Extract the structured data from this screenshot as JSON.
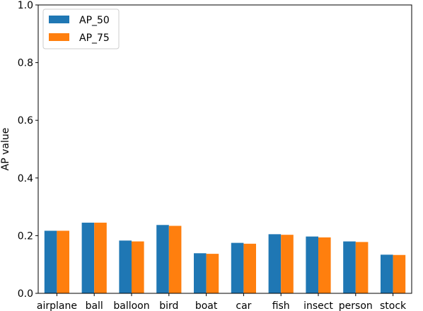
{
  "chart_data": {
    "type": "bar",
    "title": "",
    "xlabel": "",
    "ylabel": "AP value",
    "ylim": [
      0,
      1.0
    ],
    "yticks": [
      "0.0",
      "0.2",
      "0.4",
      "0.6",
      "0.8",
      "1.0"
    ],
    "categories": [
      "airplane",
      "ball",
      "balloon",
      "bird",
      "boat",
      "car",
      "fish",
      "insect",
      "person",
      "stock"
    ],
    "series": [
      {
        "name": "AP_50",
        "color": "#1f77b4",
        "values": [
          0.217,
          0.245,
          0.183,
          0.237,
          0.139,
          0.175,
          0.205,
          0.197,
          0.18,
          0.134
        ]
      },
      {
        "name": "AP_75",
        "color": "#ff7f0e",
        "values": [
          0.217,
          0.245,
          0.18,
          0.234,
          0.137,
          0.172,
          0.203,
          0.194,
          0.178,
          0.133
        ]
      }
    ],
    "legend": "top-left",
    "grid": false
  }
}
